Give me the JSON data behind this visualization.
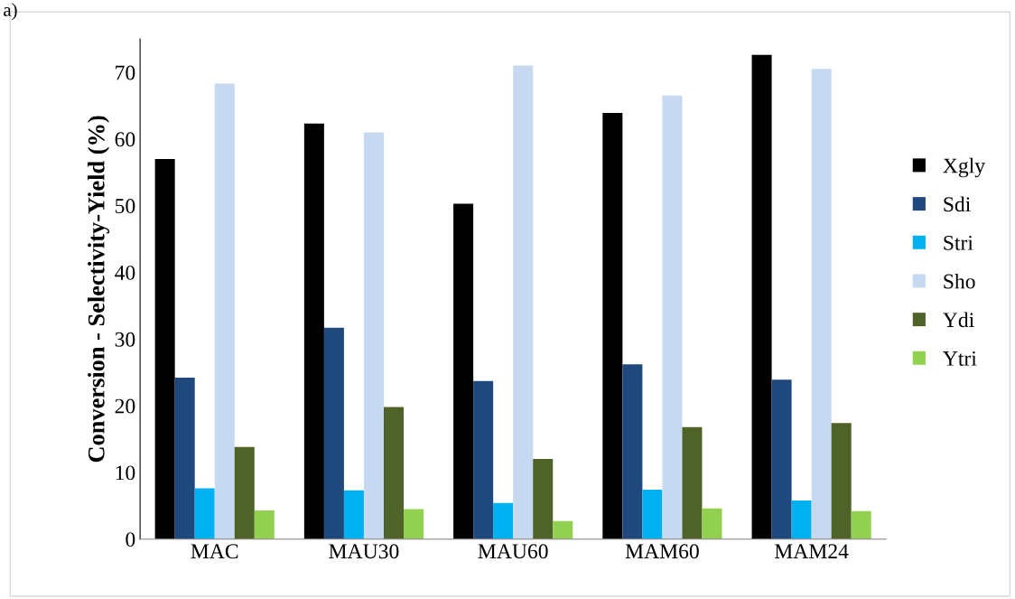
{
  "chart_data": {
    "type": "bar",
    "ylabel": "Conversion - Selectivity-Yield (%)",
    "annotations": [
      "a)"
    ],
    "categories": [
      "MAC",
      "MAU30",
      "MAU60",
      "MAM60",
      "MAM24"
    ],
    "series": [
      {
        "name": "Xgly",
        "color": "#000000",
        "values": [
          57.0,
          62.3,
          50.3,
          63.9,
          72.6
        ]
      },
      {
        "name": "Sdi",
        "color": "#1f497d",
        "values": [
          24.2,
          31.7,
          23.7,
          26.2,
          23.9
        ]
      },
      {
        "name": "Stri",
        "color": "#00b0f0",
        "values": [
          7.6,
          7.3,
          5.4,
          7.4,
          5.8
        ]
      },
      {
        "name": "Sho",
        "color": "#c6d9f1",
        "values": [
          68.3,
          61.0,
          71.0,
          66.5,
          70.5
        ]
      },
      {
        "name": "Ydi",
        "color": "#4f6228",
        "values": [
          13.8,
          19.8,
          12.0,
          16.8,
          17.4
        ]
      },
      {
        "name": "Ytri",
        "color": "#92d050",
        "values": [
          4.3,
          4.5,
          2.7,
          4.6,
          4.2
        ]
      }
    ],
    "ylim": [
      0,
      75
    ],
    "yticks": [
      0,
      10,
      20,
      30,
      40,
      50,
      60,
      70
    ],
    "grid": false,
    "legend": "right"
  }
}
